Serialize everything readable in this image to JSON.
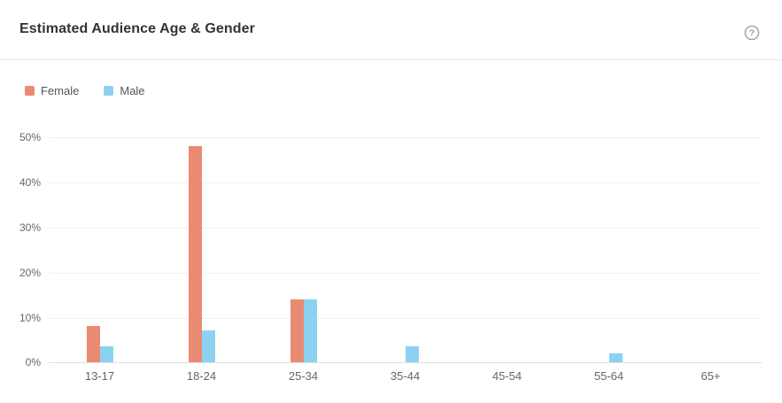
{
  "header": {
    "title": "Estimated Audience Age & Gender",
    "help_icon": "question-mark-circle-icon"
  },
  "legend": {
    "items": [
      {
        "label": "Female",
        "color": "#E98B72"
      },
      {
        "label": "Male",
        "color": "#8CD2F0"
      }
    ]
  },
  "chart_data": {
    "type": "bar",
    "title": "Estimated Audience Age & Gender",
    "categories": [
      "13-17",
      "18-24",
      "25-34",
      "35-44",
      "45-54",
      "55-64",
      "65+"
    ],
    "series": [
      {
        "name": "Female",
        "color": "#E98B72",
        "values": [
          8,
          47.8,
          14,
          0,
          0,
          0,
          0
        ]
      },
      {
        "name": "Male",
        "color": "#8CD2F0",
        "values": [
          3.5,
          7,
          14,
          3.5,
          0,
          2,
          0
        ]
      }
    ],
    "xlabel": "",
    "ylabel": "",
    "ylim": [
      0,
      50
    ],
    "ytick_values": [
      0,
      10,
      20,
      30,
      40,
      50
    ],
    "ytick_labels": [
      "0%",
      "10%",
      "20%",
      "30%",
      "40%",
      "50%"
    ],
    "grid": true,
    "legend_position": "top-left",
    "colors": {
      "grid": "#f0f0f0",
      "axis": "#e0e0e0",
      "tick_text": "#666666",
      "title_text": "#333333"
    }
  }
}
